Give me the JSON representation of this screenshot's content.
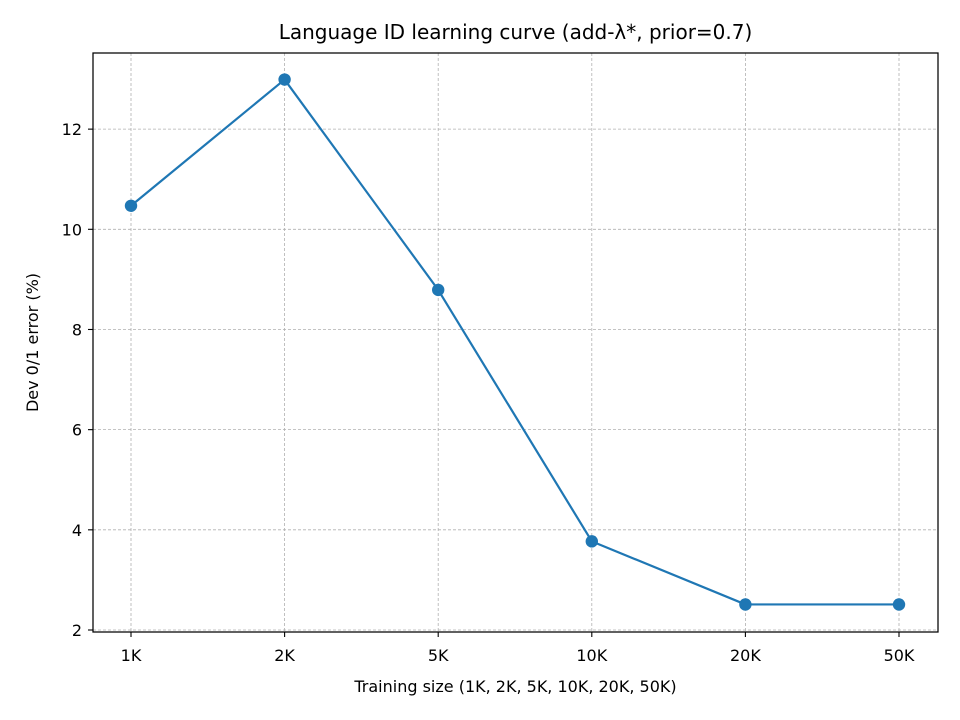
{
  "chart_data": {
    "type": "line",
    "title": "Language ID learning curve (add-λ*, prior=0.7)",
    "xlabel": "Training size (1K, 2K, 5K, 10K, 20K, 50K)",
    "ylabel": "Dev 0/1 error (%)",
    "categories": [
      "1K",
      "2K",
      "5K",
      "10K",
      "20K",
      "50K"
    ],
    "series": [
      {
        "values": [
          10.47,
          12.99,
          8.79,
          3.77,
          2.51,
          2.51
        ],
        "color": "#1f77b4",
        "marker": "circle"
      }
    ],
    "ylim": [
      1.96,
      13.52
    ],
    "yticks": [
      2,
      4,
      6,
      8,
      10,
      12
    ],
    "grid": true,
    "grid_style": "dashed"
  }
}
